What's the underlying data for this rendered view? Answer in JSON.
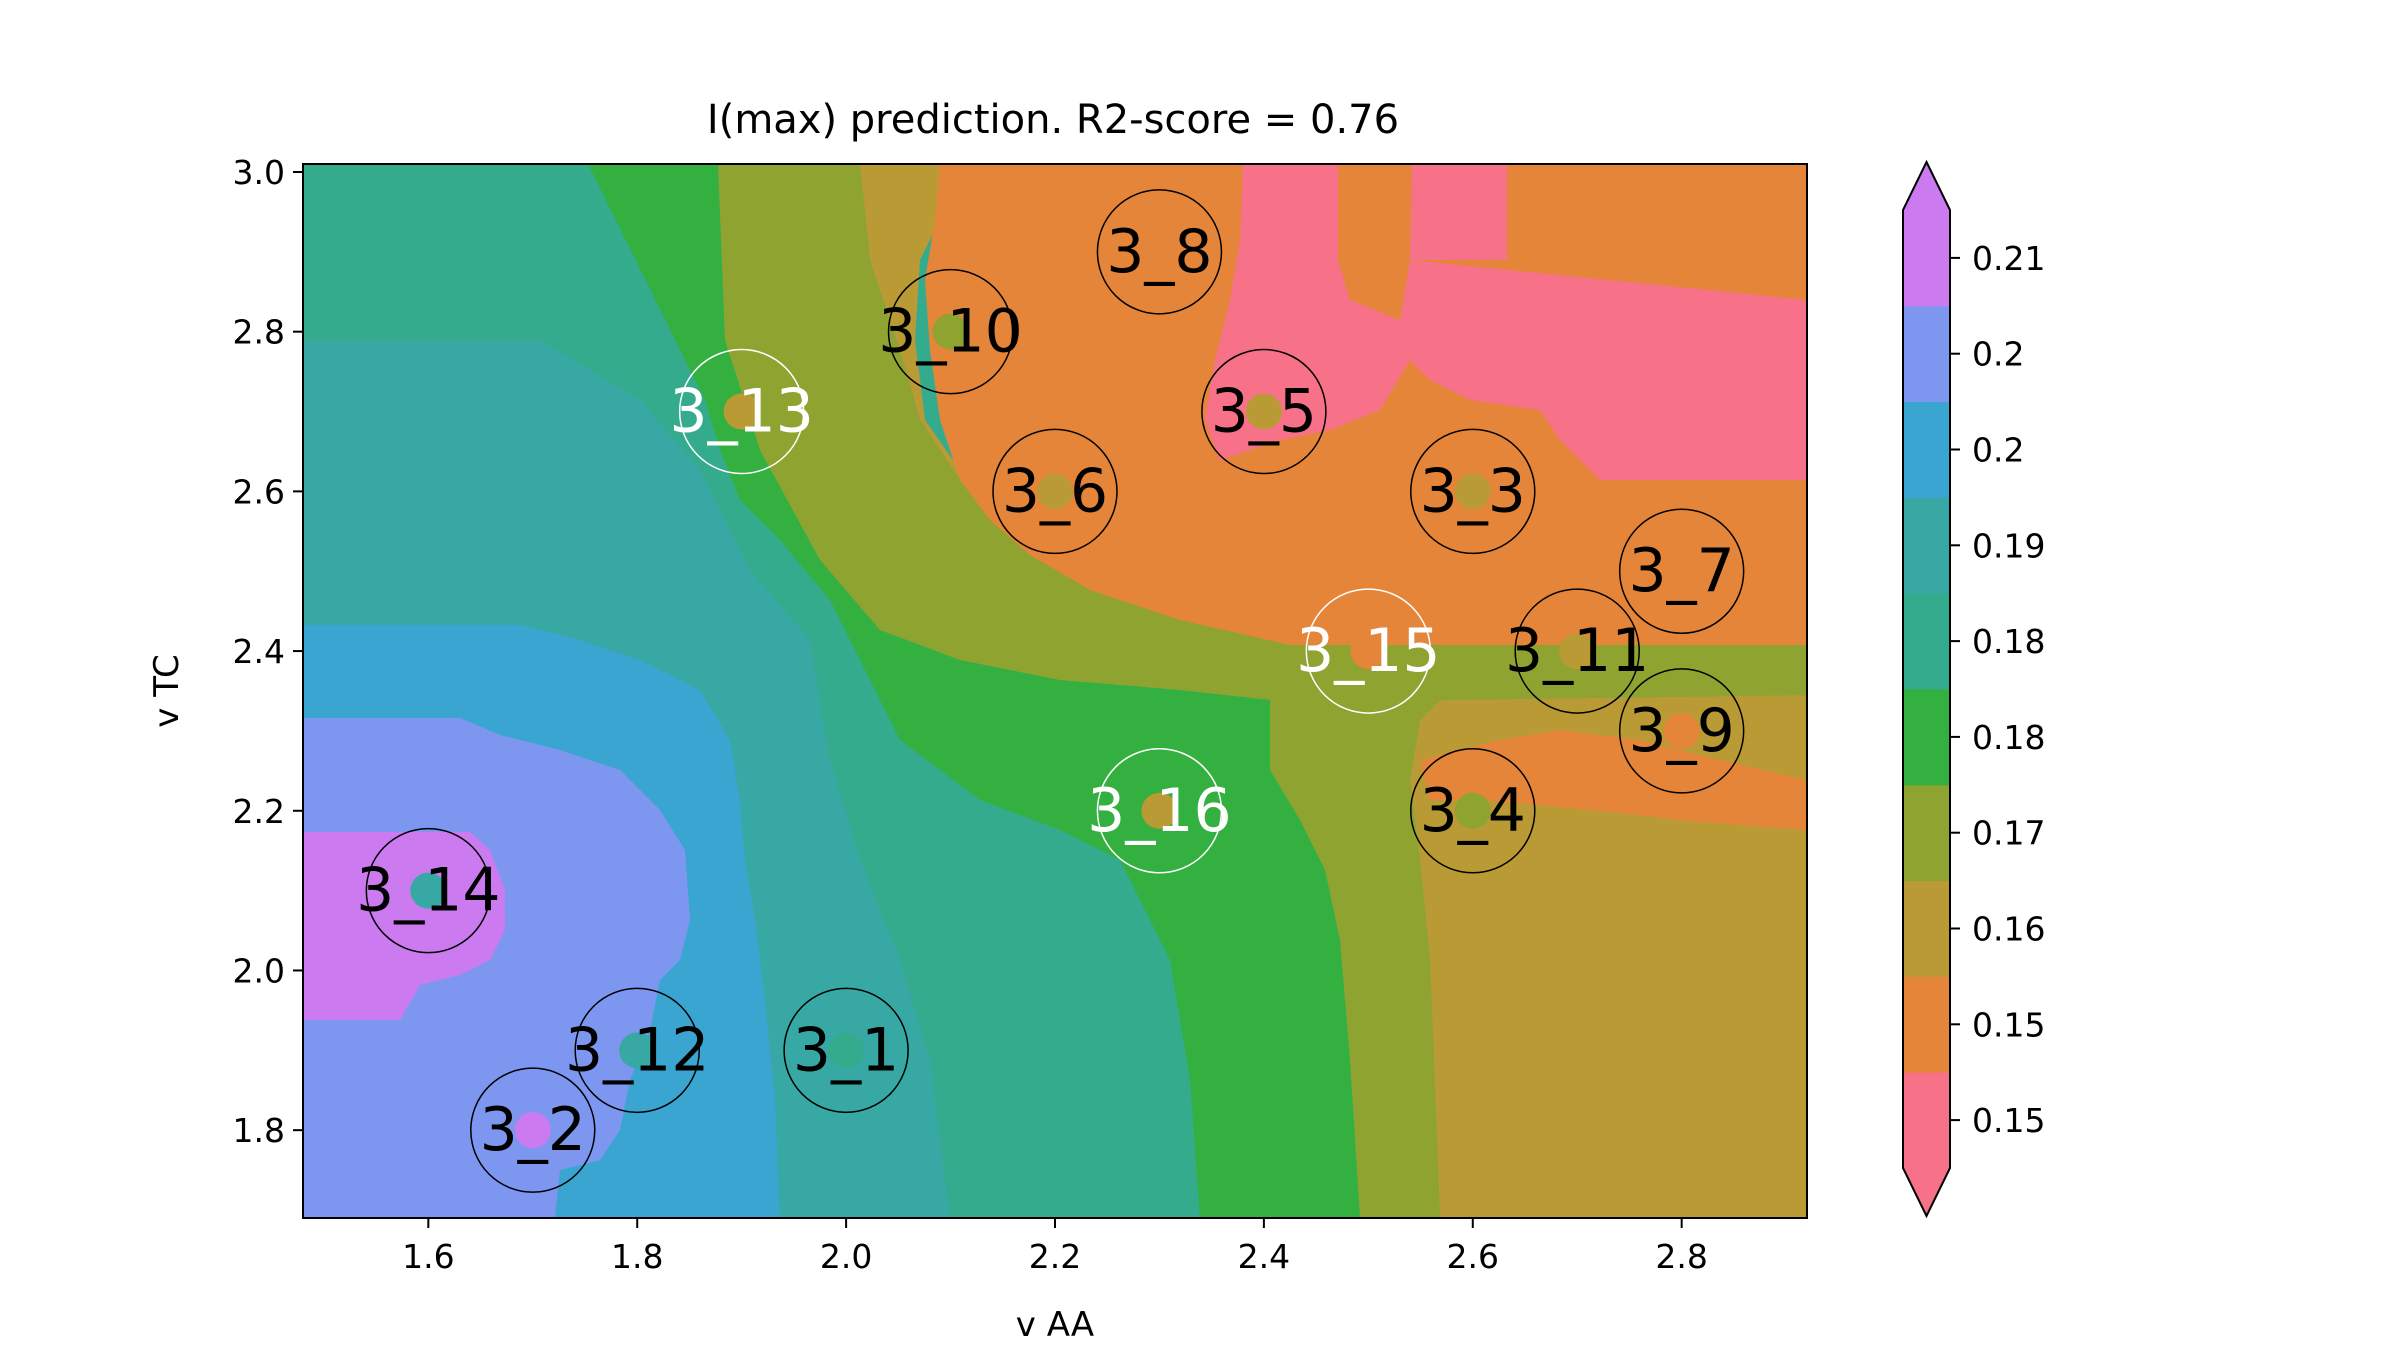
{
  "chart_data": {
    "type": "heatmap",
    "title": "I(max) prediction. R2-score = 0.76",
    "xlabel": "v AA",
    "ylabel": "v TC",
    "xlim": [
      1.48,
      2.92
    ],
    "ylim": [
      1.69,
      3.01
    ],
    "xticks": [
      "1.6",
      "1.8",
      "2.0",
      "2.2",
      "2.4",
      "2.6",
      "2.8"
    ],
    "yticks": [
      "1.8",
      "2.0",
      "2.2",
      "2.4",
      "2.6",
      "2.8",
      "3.0"
    ],
    "colorbar": {
      "extend": "both",
      "levels": [
        {
          "label": "0.15",
          "color": "#f77189"
        },
        {
          "label": "0.15",
          "color": "#e5853a"
        },
        {
          "label": "0.16",
          "color": "#b99a34"
        },
        {
          "label": "0.17",
          "color": "#8fa331"
        },
        {
          "label": "0.18",
          "color": "#33b040"
        },
        {
          "label": "0.18",
          "color": "#35ab8e"
        },
        {
          "label": "0.19",
          "color": "#37a8a3"
        },
        {
          "label": "0.2",
          "color": "#3aa5d0"
        },
        {
          "label": "0.2",
          "color": "#7d97f1"
        },
        {
          "label": "0.21",
          "color": "#cc7af0"
        }
      ]
    },
    "points": [
      {
        "label": "3_1",
        "x": 2.0,
        "y": 1.9,
        "level": 5,
        "label_color": "#000000"
      },
      {
        "label": "3_2",
        "x": 1.7,
        "y": 1.8,
        "level": 9,
        "label_color": "#000000"
      },
      {
        "label": "3_3",
        "x": 2.6,
        "y": 2.6,
        "level": 2,
        "label_color": "#000000"
      },
      {
        "label": "3_4",
        "x": 2.6,
        "y": 2.2,
        "level": 3,
        "label_color": "#000000"
      },
      {
        "label": "3_5",
        "x": 2.4,
        "y": 2.7,
        "level": 2,
        "label_color": "#000000"
      },
      {
        "label": "3_6",
        "x": 2.2,
        "y": 2.6,
        "level": 2,
        "label_color": "#000000"
      },
      {
        "label": "3_7",
        "x": 2.8,
        "y": 2.5,
        "level": 1,
        "label_color": "#000000"
      },
      {
        "label": "3_8",
        "x": 2.3,
        "y": 2.9,
        "level": 1,
        "label_color": "#000000"
      },
      {
        "label": "3_9",
        "x": 2.8,
        "y": 2.3,
        "level": 1,
        "label_color": "#000000"
      },
      {
        "label": "3_10",
        "x": 2.1,
        "y": 2.8,
        "level": 3,
        "label_color": "#000000"
      },
      {
        "label": "3_11",
        "x": 2.7,
        "y": 2.4,
        "level": 2,
        "label_color": "#000000"
      },
      {
        "label": "3_12",
        "x": 1.8,
        "y": 1.9,
        "level": 6,
        "label_color": "#000000"
      },
      {
        "label": "3_13",
        "x": 1.9,
        "y": 2.7,
        "level": 2,
        "label_color": "#ffffff"
      },
      {
        "label": "3_14",
        "x": 1.6,
        "y": 2.1,
        "level": 6,
        "label_color": "#000000"
      },
      {
        "label": "3_15",
        "x": 2.5,
        "y": 2.4,
        "level": 1,
        "label_color": "#ffffff"
      },
      {
        "label": "3_16",
        "x": 2.3,
        "y": 2.2,
        "level": 2,
        "label_color": "#ffffff"
      }
    ]
  }
}
